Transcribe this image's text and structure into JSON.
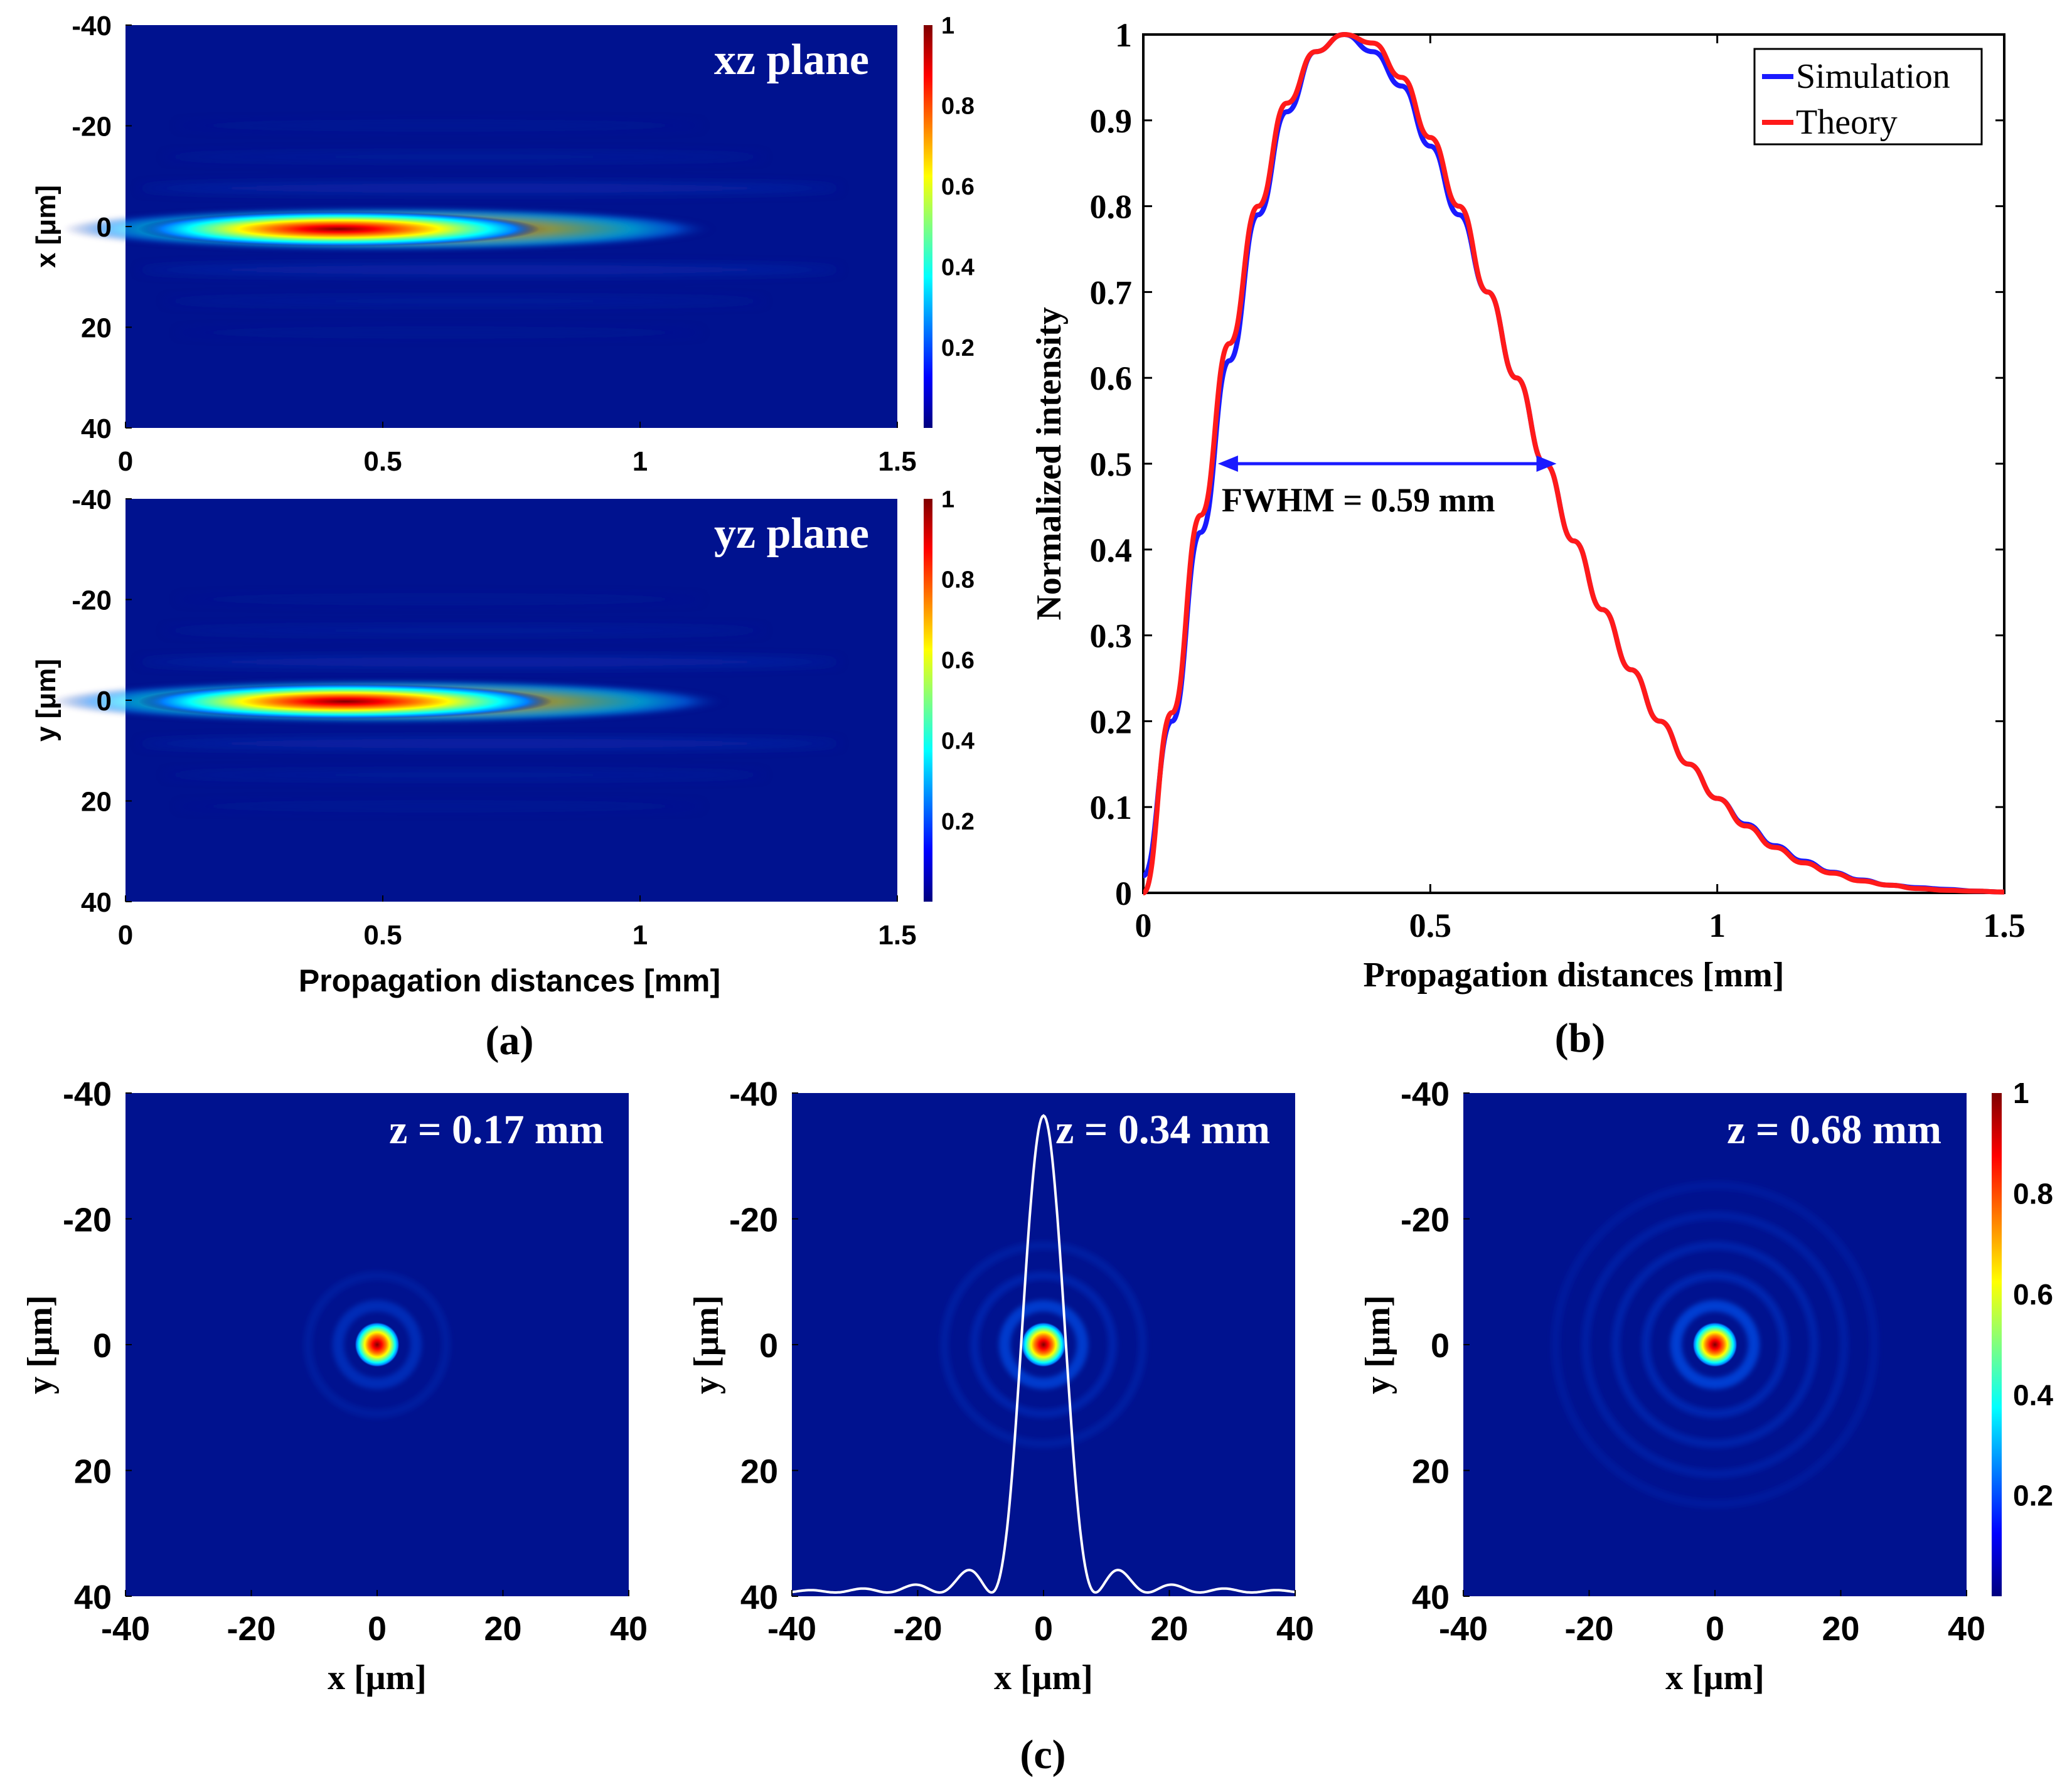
{
  "colors": {
    "background": "#00128f",
    "simulation": "#1a1aff",
    "theory": "#ff1a1a",
    "fwhm_arrow": "#1a1aff",
    "white": "#ffffff",
    "axis": "#000000"
  },
  "colormap": [
    "#00007f",
    "#0000ff",
    "#007fff",
    "#00ffff",
    "#7fff7f",
    "#ffff00",
    "#ff7f00",
    "#ff0000",
    "#7f0000"
  ],
  "colorbar": {
    "ticks": [
      "1",
      "0.8",
      "0.6",
      "0.4",
      "0.2"
    ],
    "tick_values": [
      1,
      0.8,
      0.6,
      0.4,
      0.2
    ]
  },
  "panel_labels": {
    "a": "(a)",
    "b": "(b)",
    "c": "(c)"
  },
  "panel_a": {
    "xz": {
      "label": "xz plane",
      "ylabel": "x [μm]",
      "yticks": [
        "-40",
        "-20",
        "0",
        "20",
        "40"
      ],
      "ytick_values": [
        -40,
        -20,
        0,
        20,
        40
      ],
      "xticks": [
        "0",
        "0.5",
        "1",
        "1.5"
      ],
      "xtick_values": [
        0,
        0.5,
        1,
        1.5
      ],
      "xlim": [
        0,
        1.5
      ],
      "ylim": [
        -40,
        40
      ]
    },
    "yz": {
      "label": "yz plane",
      "ylabel": "y [μm]",
      "yticks": [
        "-40",
        "-20",
        "0",
        "20",
        "40"
      ],
      "ytick_values": [
        -40,
        -20,
        0,
        20,
        40
      ],
      "xticks": [
        "0",
        "0.5",
        "1",
        "1.5"
      ],
      "xtick_values": [
        0,
        0.5,
        1,
        1.5
      ],
      "xlim": [
        0,
        1.5
      ],
      "ylim": [
        -40,
        40
      ]
    },
    "xlabel": "Propagation distances [mm]"
  },
  "chart_data": {
    "type": "line",
    "title": "",
    "xlabel": "Propagation distances [mm]",
    "ylabel": "Normalized intensity",
    "xlim": [
      0,
      1.5
    ],
    "ylim": [
      0,
      1
    ],
    "xticks": [
      "0",
      "0.5",
      "1",
      "1.5"
    ],
    "xtick_values": [
      0,
      0.5,
      1,
      1.5
    ],
    "yticks": [
      "0",
      "0.1",
      "0.2",
      "0.3",
      "0.4",
      "0.5",
      "0.6",
      "0.7",
      "0.8",
      "0.9",
      "1"
    ],
    "ytick_values": [
      0,
      0.1,
      0.2,
      0.3,
      0.4,
      0.5,
      0.6,
      0.7,
      0.8,
      0.9,
      1
    ],
    "legend_position": "top-right",
    "x": [
      0,
      0.05,
      0.1,
      0.15,
      0.2,
      0.25,
      0.3,
      0.35,
      0.4,
      0.45,
      0.5,
      0.55,
      0.6,
      0.65,
      0.7,
      0.75,
      0.8,
      0.85,
      0.9,
      0.95,
      1.0,
      1.05,
      1.1,
      1.15,
      1.2,
      1.25,
      1.3,
      1.35,
      1.4,
      1.45,
      1.5
    ],
    "series": [
      {
        "name": "Simulation",
        "values": [
          0.02,
          0.2,
          0.42,
          0.62,
          0.79,
          0.91,
          0.98,
          1.0,
          0.98,
          0.94,
          0.87,
          0.79,
          0.7,
          0.6,
          0.5,
          0.41,
          0.33,
          0.26,
          0.2,
          0.15,
          0.11,
          0.08,
          0.055,
          0.037,
          0.024,
          0.015,
          0.009,
          0.006,
          0.004,
          0.002,
          0.001
        ]
      },
      {
        "name": "Theory",
        "values": [
          0.0,
          0.21,
          0.44,
          0.64,
          0.8,
          0.92,
          0.98,
          1.0,
          0.99,
          0.95,
          0.88,
          0.8,
          0.7,
          0.6,
          0.5,
          0.41,
          0.33,
          0.26,
          0.2,
          0.15,
          0.11,
          0.078,
          0.053,
          0.035,
          0.023,
          0.014,
          0.009,
          0.005,
          0.003,
          0.002,
          0.001
        ]
      }
    ],
    "annotation": {
      "text": "FWHM = 0.59 mm",
      "x_start": 0.13,
      "x_end": 0.72,
      "y": 0.5
    }
  },
  "panel_c": [
    {
      "label": "z = 0.17 mm",
      "ring_count": 2,
      "ring_strength": 0.35,
      "has_profile": false
    },
    {
      "label": "z = 0.34 mm",
      "ring_count": 3,
      "ring_strength": 0.55,
      "has_profile": true
    },
    {
      "label": "z = 0.68 mm",
      "ring_count": 5,
      "ring_strength": 0.6,
      "has_profile": false
    }
  ],
  "panel_c_axes": {
    "xlabel": "x [μm]",
    "ylabel": "y [μm]",
    "ticks": [
      "-40",
      "-20",
      "0",
      "20",
      "40"
    ],
    "tick_values": [
      -40,
      -20,
      0,
      20,
      40
    ],
    "lim": [
      -40,
      40
    ]
  }
}
